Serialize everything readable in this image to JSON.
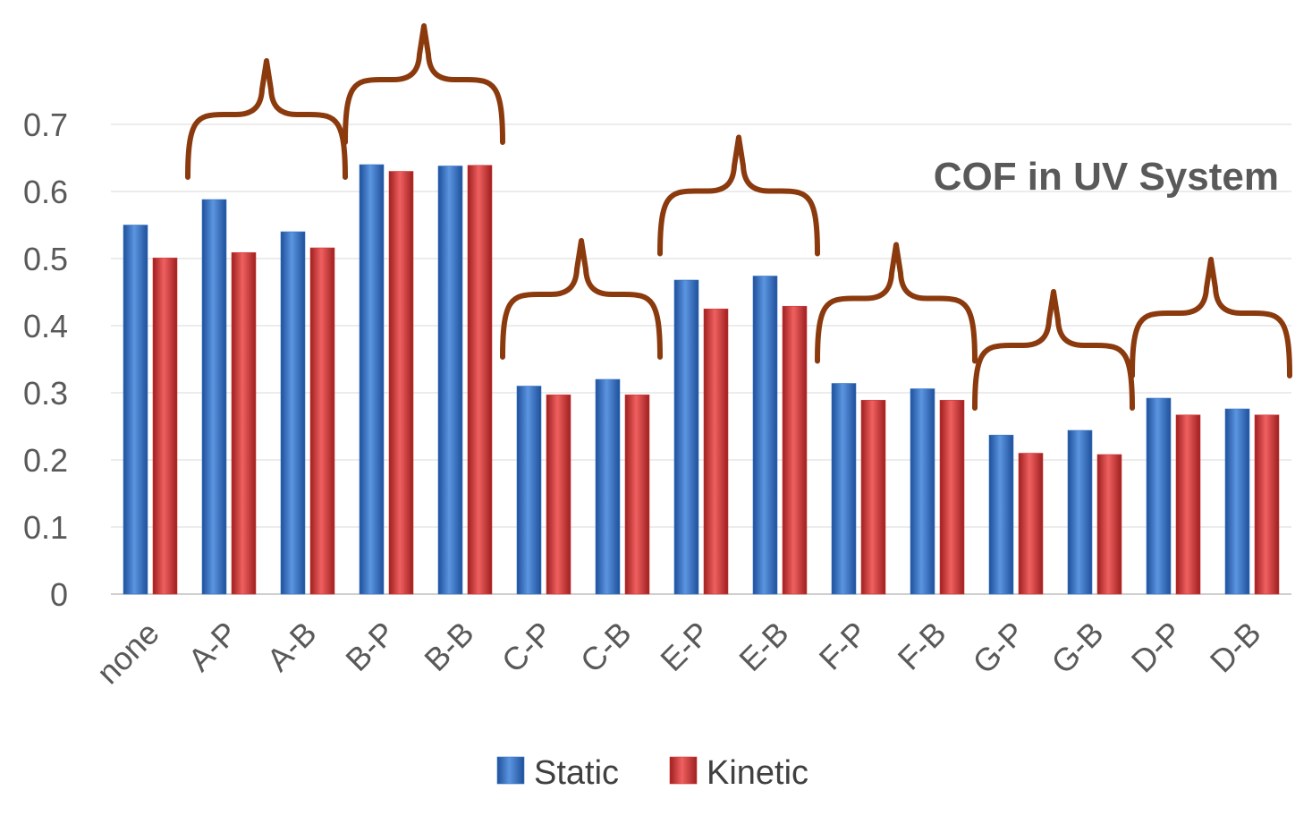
{
  "chart_data": {
    "type": "bar",
    "title": "COF in UV System",
    "xlabel": "",
    "ylabel": "",
    "ylim": [
      0,
      0.7
    ],
    "yticks": [
      "0",
      "0.1",
      "0.2",
      "0.3",
      "0.4",
      "0.5",
      "0.6",
      "0.7"
    ],
    "grid": true,
    "legend_position": "bottom",
    "categories": [
      "none",
      "A-P",
      "A-B",
      "B-P",
      "B-B",
      "C-P",
      "C-B",
      "E-P",
      "E-B",
      "F-P",
      "F-B",
      "G-P",
      "G-B",
      "D-P",
      "D-B"
    ],
    "series": [
      {
        "name": "Static",
        "color": "#3a78c9",
        "values": [
          0.55,
          0.588,
          0.54,
          0.64,
          0.638,
          0.31,
          0.32,
          0.468,
          0.474,
          0.314,
          0.306,
          0.237,
          0.244,
          0.292,
          0.276
        ]
      },
      {
        "name": "Kinetic",
        "color": "#d63a3a",
        "values": [
          0.501,
          0.509,
          0.516,
          0.63,
          0.639,
          0.297,
          0.297,
          0.425,
          0.429,
          0.289,
          0.289,
          0.21,
          0.208,
          0.267,
          0.267
        ]
      }
    ],
    "annotations": [
      {
        "type": "brace",
        "spans": [
          "A-P",
          "A-B"
        ]
      },
      {
        "type": "brace",
        "spans": [
          "B-P",
          "B-B"
        ]
      },
      {
        "type": "brace",
        "spans": [
          "C-P",
          "C-B"
        ]
      },
      {
        "type": "brace",
        "spans": [
          "E-P",
          "E-B"
        ]
      },
      {
        "type": "brace",
        "spans": [
          "F-P",
          "F-B"
        ]
      },
      {
        "type": "brace",
        "spans": [
          "G-P",
          "G-B"
        ]
      },
      {
        "type": "brace",
        "spans": [
          "D-P",
          "D-B"
        ]
      }
    ],
    "annotation_color": "#8b3a0e"
  }
}
